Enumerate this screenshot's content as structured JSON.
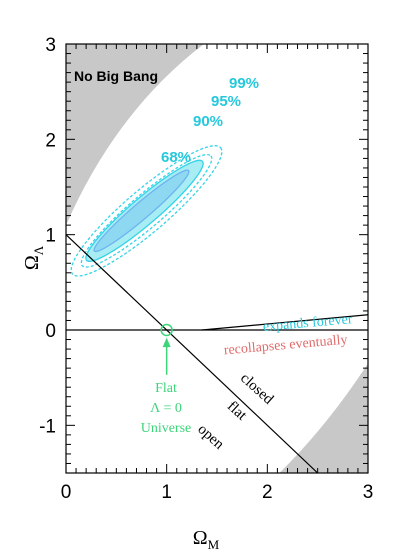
{
  "chart_data": {
    "type": "contour",
    "x": {
      "label": "Ω",
      "label_sub": "M",
      "range": [
        0,
        3
      ],
      "ticks": [
        "0",
        "1",
        "2",
        "3"
      ]
    },
    "y": {
      "label": "Ω",
      "label_sub": "Λ",
      "range": [
        -1.5,
        3
      ],
      "ticks": [
        "-1",
        "0",
        "1",
        "2",
        "3"
      ]
    },
    "regions": [
      {
        "label": "No Big Bang",
        "color": "#c8c8c8"
      }
    ],
    "confidence_contours": [
      {
        "label": "68%",
        "color": "#6cb4f0",
        "center": [
          0.75,
          1.25
        ],
        "axes": [
          1.26,
          0.17
        ],
        "angle_deg": 42
      },
      {
        "label": "90%",
        "color": "#35d4e8",
        "center": [
          0.78,
          1.25
        ],
        "axes": [
          1.55,
          0.28
        ],
        "angle_deg": 42
      },
      {
        "label": "95%",
        "color": "#35d4e8",
        "center": [
          0.8,
          1.25
        ],
        "axes": [
          1.72,
          0.34
        ],
        "angle_deg": 42
      },
      {
        "label": "99%",
        "color": "#35d4e8",
        "center": [
          0.8,
          1.25
        ],
        "axes": [
          1.98,
          0.44
        ],
        "angle_deg": 42
      }
    ],
    "fill_color": "#a8ecf4",
    "lines": [
      {
        "name": "flat",
        "points": [
          [
            0,
            1
          ],
          [
            2.5,
            -1.5
          ]
        ],
        "color": "#000000"
      },
      {
        "name": "zero",
        "points": [
          [
            0,
            0
          ],
          [
            3,
            0
          ]
        ],
        "color": "#000000"
      },
      {
        "name": "expansion-boundary",
        "points": [
          [
            1.35,
            0
          ],
          [
            3,
            0.16
          ]
        ],
        "color": "#000000"
      }
    ],
    "point": {
      "x": 1,
      "y": 0,
      "color": "#3dd47a"
    },
    "annotations": {
      "no_big_bang": "No Big Bang",
      "expands": "expands forever",
      "recollapses": "recollapses eventually",
      "closed": "closed",
      "flat": "flat",
      "open": "open",
      "universe_l1": "Flat",
      "universe_l2": "Λ = 0",
      "universe_l3": "Universe"
    },
    "colors": {
      "expands": "#26c8dc",
      "recollapses": "#e06b6b",
      "universe": "#3dd47a",
      "percent": "#26c8dc"
    }
  }
}
